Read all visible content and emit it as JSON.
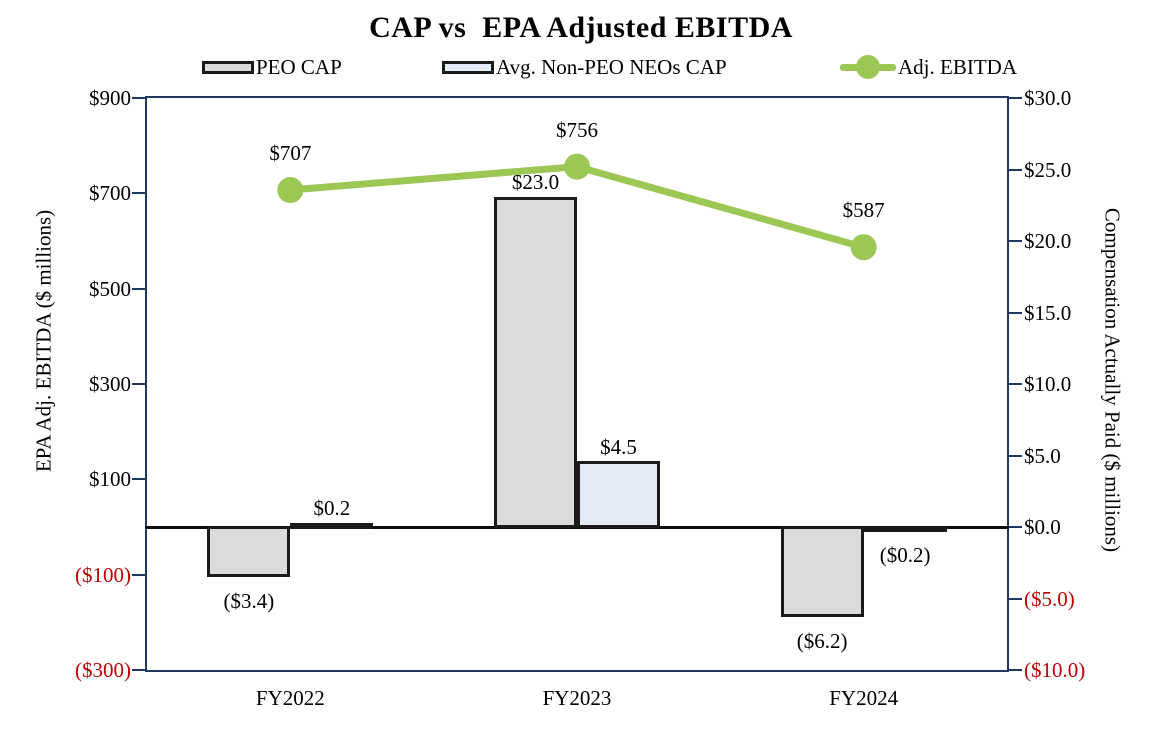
{
  "title": "CAP vs  EPA Adjusted EBITDA",
  "colors": {
    "frame": "#1f3864",
    "peo_bar_fill": "#dbdbdb",
    "non_peo_bar_fill": "#e3eaf5",
    "bar_border": "#1a1a1a",
    "line": "#9cc755",
    "negative_tick": "#c00000",
    "text": "#000000"
  },
  "legend": [
    {
      "label": "PEO CAP",
      "swatch": "bar-gray"
    },
    {
      "label": "Avg. Non-PEO NEOs CAP",
      "swatch": "bar-blue"
    },
    {
      "label": "Adj. EBITDA",
      "swatch": "line-marker"
    }
  ],
  "chart_data": {
    "type": "combo",
    "categories": [
      "FY2022",
      "FY2023",
      "FY2024"
    ],
    "series": [
      {
        "name": "PEO CAP",
        "type": "bar",
        "axis": "right",
        "values": [
          -3.4,
          23.0,
          -6.2
        ],
        "labels": [
          "($3.4)",
          "$23.0",
          "($6.2)"
        ]
      },
      {
        "name": "Avg. Non-PEO NEOs CAP",
        "type": "bar",
        "axis": "right",
        "values": [
          0.2,
          4.5,
          -0.2
        ],
        "labels": [
          "$0.2",
          "$4.5",
          "($0.2)"
        ]
      },
      {
        "name": "Adj. EBITDA",
        "type": "line",
        "axis": "left",
        "values": [
          707,
          756,
          587
        ],
        "labels": [
          "$707",
          "$756",
          "$587"
        ]
      }
    ],
    "left_axis": {
      "title": "EPA Adj. EBITDA ($ millions)",
      "min": -300,
      "max": 900,
      "step": 200,
      "ticks": [
        "$900",
        "$700",
        "$500",
        "$300",
        "$100",
        "($100)",
        "($300)"
      ]
    },
    "right_axis": {
      "title": "Compensation Actually Paid ($ millions)",
      "min": -10,
      "max": 30,
      "step": 5,
      "ticks": [
        "$30.0",
        "$25.0",
        "$20.0",
        "$15.0",
        "$10.0",
        "$5.0",
        "$0.0",
        "($5.0)",
        "($10.0)"
      ]
    },
    "grid": false,
    "legend_position": "top"
  }
}
